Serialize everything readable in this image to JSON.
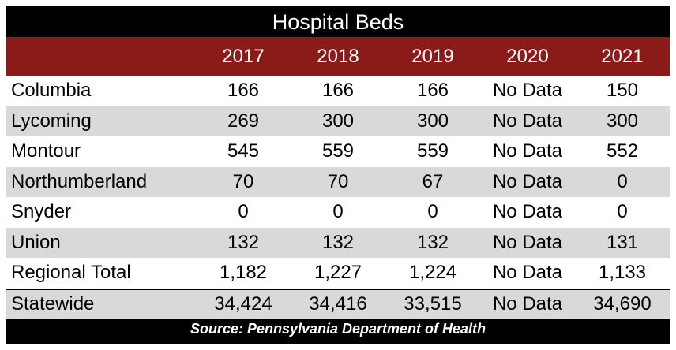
{
  "title": "Hospital Beds",
  "header": {
    "columns": [
      "",
      "2017",
      "2018",
      "2019",
      "2020",
      "2021"
    ]
  },
  "rows": [
    {
      "label": "Columbia",
      "values": [
        "166",
        "166",
        "166",
        "No Data",
        "150"
      ]
    },
    {
      "label": "Lycoming",
      "values": [
        "269",
        "300",
        "300",
        "No Data",
        "300"
      ]
    },
    {
      "label": "Montour",
      "values": [
        "545",
        "559",
        "559",
        "No Data",
        "552"
      ]
    },
    {
      "label": "Northumberland",
      "values": [
        "70",
        "70",
        "67",
        "No Data",
        "0"
      ]
    },
    {
      "label": "Snyder",
      "values": [
        "0",
        "0",
        "0",
        "No Data",
        "0"
      ]
    },
    {
      "label": "Union",
      "values": [
        "132",
        "132",
        "132",
        "No Data",
        "131"
      ]
    },
    {
      "label": "Regional Total",
      "values": [
        "1,182",
        "1,227",
        "1,224",
        "No Data",
        "1,133"
      ]
    }
  ],
  "statewide": {
    "label": "Statewide",
    "values": [
      "34,424",
      "34,416",
      "33,515",
      "No Data",
      "34,690"
    ]
  },
  "source": "Source: Pennsylvania Department of Health",
  "colors": {
    "header_bg": "#8b1b19",
    "frame_bg": "#000000",
    "stripe": "#d9d9d9"
  }
}
